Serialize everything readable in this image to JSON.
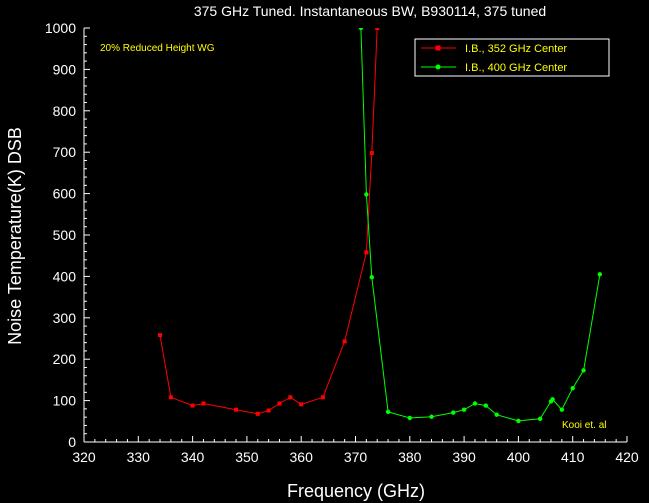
{
  "chart_data": {
    "type": "line",
    "title": "375 GHz Tuned. Instantaneous BW, B930114, 375 tuned",
    "xlabel": "Frequency (GHz)",
    "ylabel": "Noise Temperature(K) DSB",
    "xlim": [
      320,
      420
    ],
    "ylim": [
      0,
      1000
    ],
    "xticks": [
      320,
      330,
      340,
      350,
      360,
      370,
      380,
      390,
      400,
      410,
      420
    ],
    "yticks": [
      0,
      100,
      200,
      300,
      400,
      500,
      600,
      700,
      800,
      900,
      1000
    ],
    "grid": false,
    "legend_position": "top-right",
    "annotations": [
      {
        "text": "20% Reduced Height WG",
        "position": "top-left"
      },
      {
        "text": "Kooi et. al",
        "position": "bottom-right"
      }
    ],
    "series": [
      {
        "name": "I.B., 352 GHz Center",
        "color": "#ff0000",
        "marker": "square",
        "x": [
          334,
          336,
          340,
          342,
          348,
          352,
          354,
          356,
          358,
          360,
          364,
          368,
          372,
          373,
          374
        ],
        "y": [
          258,
          108,
          88,
          93,
          78,
          68,
          76,
          93,
          108,
          91,
          108,
          243,
          458,
          698,
          1000
        ]
      },
      {
        "name": "I.B., 400 GHz Center",
        "color": "#00ff00",
        "marker": "circle",
        "x": [
          371,
          372,
          373,
          376,
          380,
          384,
          388,
          390,
          392,
          394,
          396,
          400,
          404,
          406,
          406.3,
          408,
          410,
          412,
          415
        ],
        "y": [
          1000,
          598,
          398,
          73,
          58,
          61,
          71,
          78,
          93,
          88,
          66,
          51,
          56,
          98,
          103,
          78,
          130,
          173,
          405
        ]
      }
    ]
  }
}
